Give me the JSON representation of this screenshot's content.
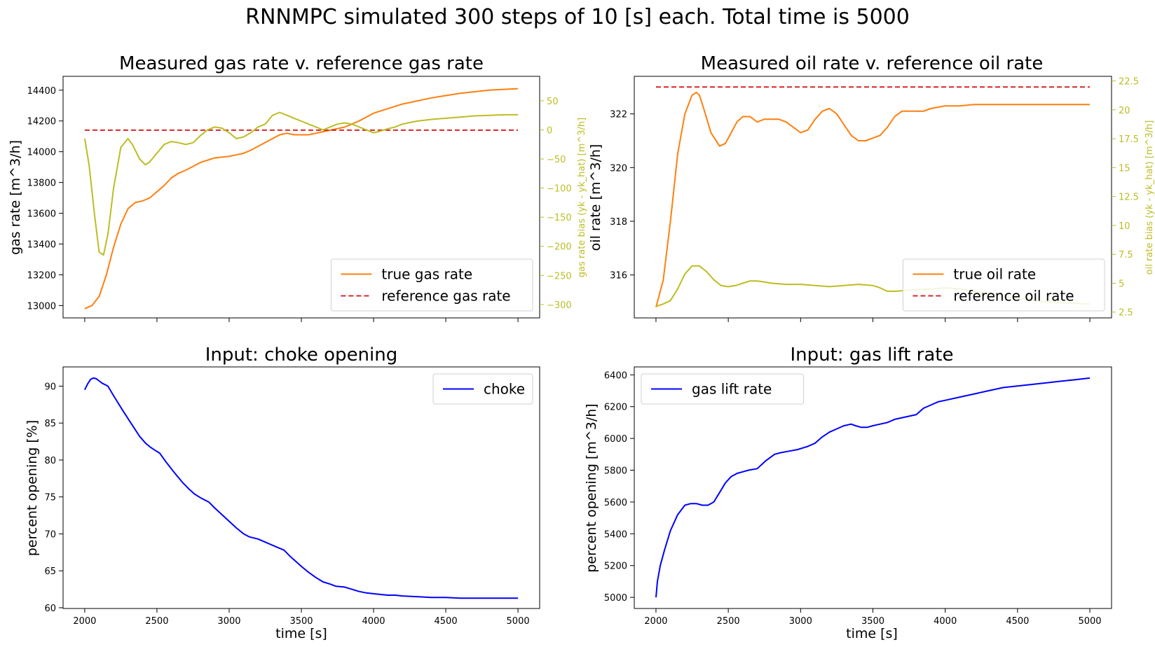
{
  "figure": {
    "suptitle": "RNNMPC simulated 300 steps of 10 [s] each. Total time is 5000"
  },
  "colors": {
    "orange": "#ff7f0e",
    "red": "#d62728",
    "olive": "#bcbd22",
    "blue": "#0000ff",
    "axis": "#000000"
  },
  "chart_data": [
    {
      "id": "gas",
      "type": "line",
      "title": "Measured gas rate v. reference gas rate",
      "ylabel": "gas rate [m^3/h]",
      "y2label": "gas rate bias (yk - yk_hat) [m^3/h]",
      "xlim": [
        1850,
        5150
      ],
      "ylim": [
        12920,
        14490
      ],
      "y2lim": [
        -323,
        92
      ],
      "xticks": [
        2000,
        2500,
        3000,
        3500,
        4000,
        4500,
        5000
      ],
      "yticks": [
        13000,
        13200,
        13400,
        13600,
        13800,
        14000,
        14200,
        14400
      ],
      "y2ticks": [
        -300,
        -250,
        -200,
        -150,
        -100,
        -50,
        0,
        50
      ],
      "legend_loc": "lower right",
      "series": [
        {
          "name": "true gas rate",
          "axis": "left",
          "style": "solid",
          "color": "#ff7f0e",
          "x": [
            2000,
            2050,
            2100,
            2150,
            2200,
            2250,
            2300,
            2350,
            2400,
            2450,
            2500,
            2550,
            2600,
            2650,
            2700,
            2800,
            2900,
            3000,
            3100,
            3150,
            3250,
            3350,
            3400,
            3450,
            3500,
            3550,
            3600,
            3650,
            3700,
            3750,
            3800,
            3900,
            4000,
            4100,
            4200,
            4400,
            4600,
            4800,
            5000
          ],
          "y": [
            12980,
            13000,
            13060,
            13200,
            13380,
            13530,
            13630,
            13670,
            13680,
            13700,
            13740,
            13780,
            13830,
            13860,
            13880,
            13930,
            13960,
            13970,
            13990,
            14010,
            14060,
            14110,
            14120,
            14110,
            14110,
            14110,
            14120,
            14130,
            14140,
            14150,
            14160,
            14200,
            14250,
            14280,
            14310,
            14350,
            14380,
            14400,
            14410
          ]
        },
        {
          "name": "reference gas rate",
          "axis": "left",
          "style": "dashed",
          "color": "#d62728",
          "x": [
            2000,
            5000
          ],
          "y": [
            14140,
            14140
          ]
        },
        {
          "name": "bias",
          "axis": "right",
          "style": "solid",
          "color": "#bcbd22",
          "legend": false,
          "x": [
            2000,
            2030,
            2070,
            2100,
            2130,
            2160,
            2200,
            2250,
            2300,
            2330,
            2380,
            2420,
            2450,
            2500,
            2550,
            2600,
            2650,
            2700,
            2750,
            2800,
            2850,
            2900,
            2950,
            3000,
            3050,
            3100,
            3150,
            3200,
            3250,
            3300,
            3350,
            3400,
            3450,
            3500,
            3550,
            3600,
            3650,
            3700,
            3750,
            3800,
            3850,
            3900,
            3950,
            4000,
            4050,
            4100,
            4150,
            4200,
            4300,
            4400,
            4500,
            4600,
            4700,
            4800,
            4900,
            5000
          ],
          "y": [
            -15,
            -60,
            -150,
            -210,
            -215,
            -180,
            -100,
            -30,
            -15,
            -25,
            -50,
            -60,
            -55,
            -40,
            -25,
            -20,
            -22,
            -25,
            -22,
            -10,
            0,
            5,
            3,
            -5,
            -15,
            -12,
            -5,
            5,
            10,
            25,
            30,
            25,
            20,
            15,
            10,
            5,
            0,
            5,
            10,
            12,
            10,
            5,
            0,
            -5,
            -2,
            2,
            5,
            10,
            15,
            18,
            20,
            22,
            24,
            25,
            26,
            26
          ]
        }
      ]
    },
    {
      "id": "oil",
      "type": "line",
      "title": "Measured oil rate v. reference oil rate",
      "ylabel": "oil rate [m^3/h]",
      "y2label": "oil rate bias (yk - yk_hat) [m^3/h]",
      "xlim": [
        1850,
        5150
      ],
      "ylim": [
        314.4,
        323.4
      ],
      "y2lim": [
        2.0,
        22.9
      ],
      "xticks": [
        2000,
        2500,
        3000,
        3500,
        4000,
        4500,
        5000
      ],
      "yticks": [
        316,
        318,
        320,
        322
      ],
      "y2ticks": [
        2.5,
        5.0,
        7.5,
        10.0,
        12.5,
        15.0,
        17.5,
        20.0,
        22.5
      ],
      "legend_loc": "lower right",
      "series": [
        {
          "name": "true oil rate",
          "axis": "left",
          "style": "solid",
          "color": "#ff7f0e",
          "x": [
            2000,
            2050,
            2100,
            2150,
            2200,
            2250,
            2280,
            2300,
            2330,
            2380,
            2440,
            2480,
            2520,
            2560,
            2600,
            2650,
            2700,
            2750,
            2800,
            2850,
            2900,
            2950,
            3000,
            3050,
            3100,
            3150,
            3200,
            3250,
            3300,
            3350,
            3400,
            3450,
            3500,
            3550,
            3600,
            3650,
            3700,
            3750,
            3800,
            3850,
            3900,
            3950,
            4000,
            4050,
            4100,
            4200,
            4300,
            4400,
            4500,
            4600,
            4800,
            5000
          ],
          "y": [
            314.8,
            315.8,
            318,
            320.5,
            322,
            322.7,
            322.8,
            322.7,
            322.2,
            321.3,
            320.8,
            320.9,
            321.3,
            321.7,
            321.9,
            321.9,
            321.7,
            321.8,
            321.8,
            321.8,
            321.7,
            321.5,
            321.3,
            321.4,
            321.8,
            322.1,
            322.2,
            322.0,
            321.6,
            321.2,
            321.0,
            321.0,
            321.1,
            321.2,
            321.5,
            321.9,
            322.1,
            322.1,
            322.1,
            322.1,
            322.2,
            322.25,
            322.3,
            322.3,
            322.3,
            322.35,
            322.35,
            322.35,
            322.35,
            322.35,
            322.35,
            322.35
          ]
        },
        {
          "name": "reference oil rate",
          "axis": "left",
          "style": "dashed",
          "color": "#d62728",
          "x": [
            2000,
            5000
          ],
          "y": [
            323.0,
            323.0
          ]
        },
        {
          "name": "bias",
          "axis": "right",
          "style": "solid",
          "color": "#bcbd22",
          "legend": false,
          "x": [
            2000,
            2050,
            2100,
            2150,
            2200,
            2250,
            2300,
            2350,
            2400,
            2450,
            2500,
            2550,
            2600,
            2650,
            2700,
            2750,
            2800,
            2900,
            3000,
            3100,
            3200,
            3300,
            3400,
            3500,
            3550,
            3600,
            3650,
            3700,
            3750,
            3800,
            3900,
            4000,
            4100,
            4200,
            4300,
            4400,
            4500,
            4600,
            4800,
            5000
          ],
          "y": [
            3.0,
            3.2,
            3.5,
            4.5,
            5.8,
            6.5,
            6.5,
            6.0,
            5.3,
            4.8,
            4.7,
            4.8,
            5.0,
            5.2,
            5.2,
            5.1,
            5.0,
            4.9,
            4.9,
            4.8,
            4.7,
            4.8,
            4.9,
            4.8,
            4.6,
            4.3,
            4.3,
            4.35,
            4.4,
            4.45,
            4.5,
            4.6,
            4.5,
            4.3,
            4.1,
            3.9,
            3.7,
            3.5,
            3.3,
            3.2
          ]
        }
      ]
    },
    {
      "id": "choke",
      "type": "line",
      "title": "Input: choke opening",
      "xlabel": "time [s]",
      "ylabel": "percent opening [%]",
      "xlim": [
        1850,
        5150
      ],
      "ylim": [
        59.9,
        92.6
      ],
      "xticks": [
        2000,
        2500,
        3000,
        3500,
        4000,
        4500,
        5000
      ],
      "yticks": [
        60,
        65,
        70,
        75,
        80,
        85,
        90
      ],
      "legend_loc": "upper right",
      "series": [
        {
          "name": "choke",
          "style": "solid",
          "color": "#0000ff",
          "x": [
            2000,
            2020,
            2040,
            2060,
            2080,
            2100,
            2120,
            2160,
            2200,
            2260,
            2320,
            2380,
            2420,
            2450,
            2480,
            2520,
            2560,
            2620,
            2680,
            2720,
            2760,
            2800,
            2860,
            2900,
            2950,
            3000,
            3050,
            3100,
            3140,
            3200,
            3260,
            3320,
            3380,
            3420,
            3460,
            3500,
            3550,
            3600,
            3650,
            3700,
            3740,
            3800,
            3850,
            3900,
            3950,
            4000,
            4050,
            4100,
            4150,
            4200,
            4300,
            4400,
            4500,
            4600,
            4700,
            4800,
            4900,
            5000
          ],
          "y": [
            89.5,
            90.3,
            90.9,
            91.1,
            91.0,
            90.7,
            90.4,
            90.0,
            88.7,
            86.8,
            85.0,
            83.2,
            82.3,
            81.8,
            81.4,
            80.9,
            79.8,
            78.3,
            76.9,
            76.1,
            75.4,
            74.9,
            74.3,
            73.5,
            72.6,
            71.7,
            70.8,
            70.0,
            69.6,
            69.3,
            68.8,
            68.3,
            67.8,
            67.0,
            66.3,
            65.6,
            64.8,
            64.1,
            63.5,
            63.2,
            62.9,
            62.8,
            62.5,
            62.2,
            62.0,
            61.9,
            61.8,
            61.7,
            61.7,
            61.6,
            61.5,
            61.4,
            61.4,
            61.3,
            61.3,
            61.3,
            61.3,
            61.3
          ]
        }
      ]
    },
    {
      "id": "gaslift",
      "type": "line",
      "title": "Input: gas lift rate",
      "xlabel": "time [s]",
      "ylabel": "percent opening [m^3/h]",
      "xlim": [
        1850,
        5150
      ],
      "ylim": [
        4930,
        6450
      ],
      "xticks": [
        2000,
        2500,
        3000,
        3500,
        4000,
        4500,
        5000
      ],
      "yticks": [
        5000,
        5200,
        5400,
        5600,
        5800,
        6000,
        6200,
        6400
      ],
      "legend_loc": "upper left",
      "series": [
        {
          "name": "gas lift rate",
          "style": "solid",
          "color": "#0000ff",
          "x": [
            2000,
            2010,
            2030,
            2060,
            2100,
            2150,
            2200,
            2240,
            2280,
            2320,
            2360,
            2400,
            2440,
            2480,
            2520,
            2560,
            2600,
            2640,
            2700,
            2760,
            2820,
            2860,
            2920,
            2980,
            3050,
            3100,
            3150,
            3200,
            3250,
            3300,
            3350,
            3380,
            3420,
            3460,
            3500,
            3550,
            3600,
            3650,
            3700,
            3750,
            3800,
            3850,
            3900,
            3950,
            4000,
            4100,
            4200,
            4300,
            4400,
            4500,
            4600,
            4700,
            4800,
            4900,
            5000
          ],
          "y": [
            5000,
            5100,
            5200,
            5300,
            5420,
            5520,
            5580,
            5590,
            5590,
            5580,
            5580,
            5600,
            5660,
            5720,
            5760,
            5780,
            5790,
            5800,
            5810,
            5860,
            5900,
            5910,
            5920,
            5930,
            5950,
            5970,
            6010,
            6040,
            6060,
            6080,
            6090,
            6080,
            6070,
            6070,
            6080,
            6090,
            6100,
            6120,
            6130,
            6140,
            6150,
            6190,
            6210,
            6230,
            6240,
            6260,
            6280,
            6300,
            6320,
            6330,
            6340,
            6350,
            6360,
            6370,
            6380
          ]
        }
      ]
    }
  ]
}
